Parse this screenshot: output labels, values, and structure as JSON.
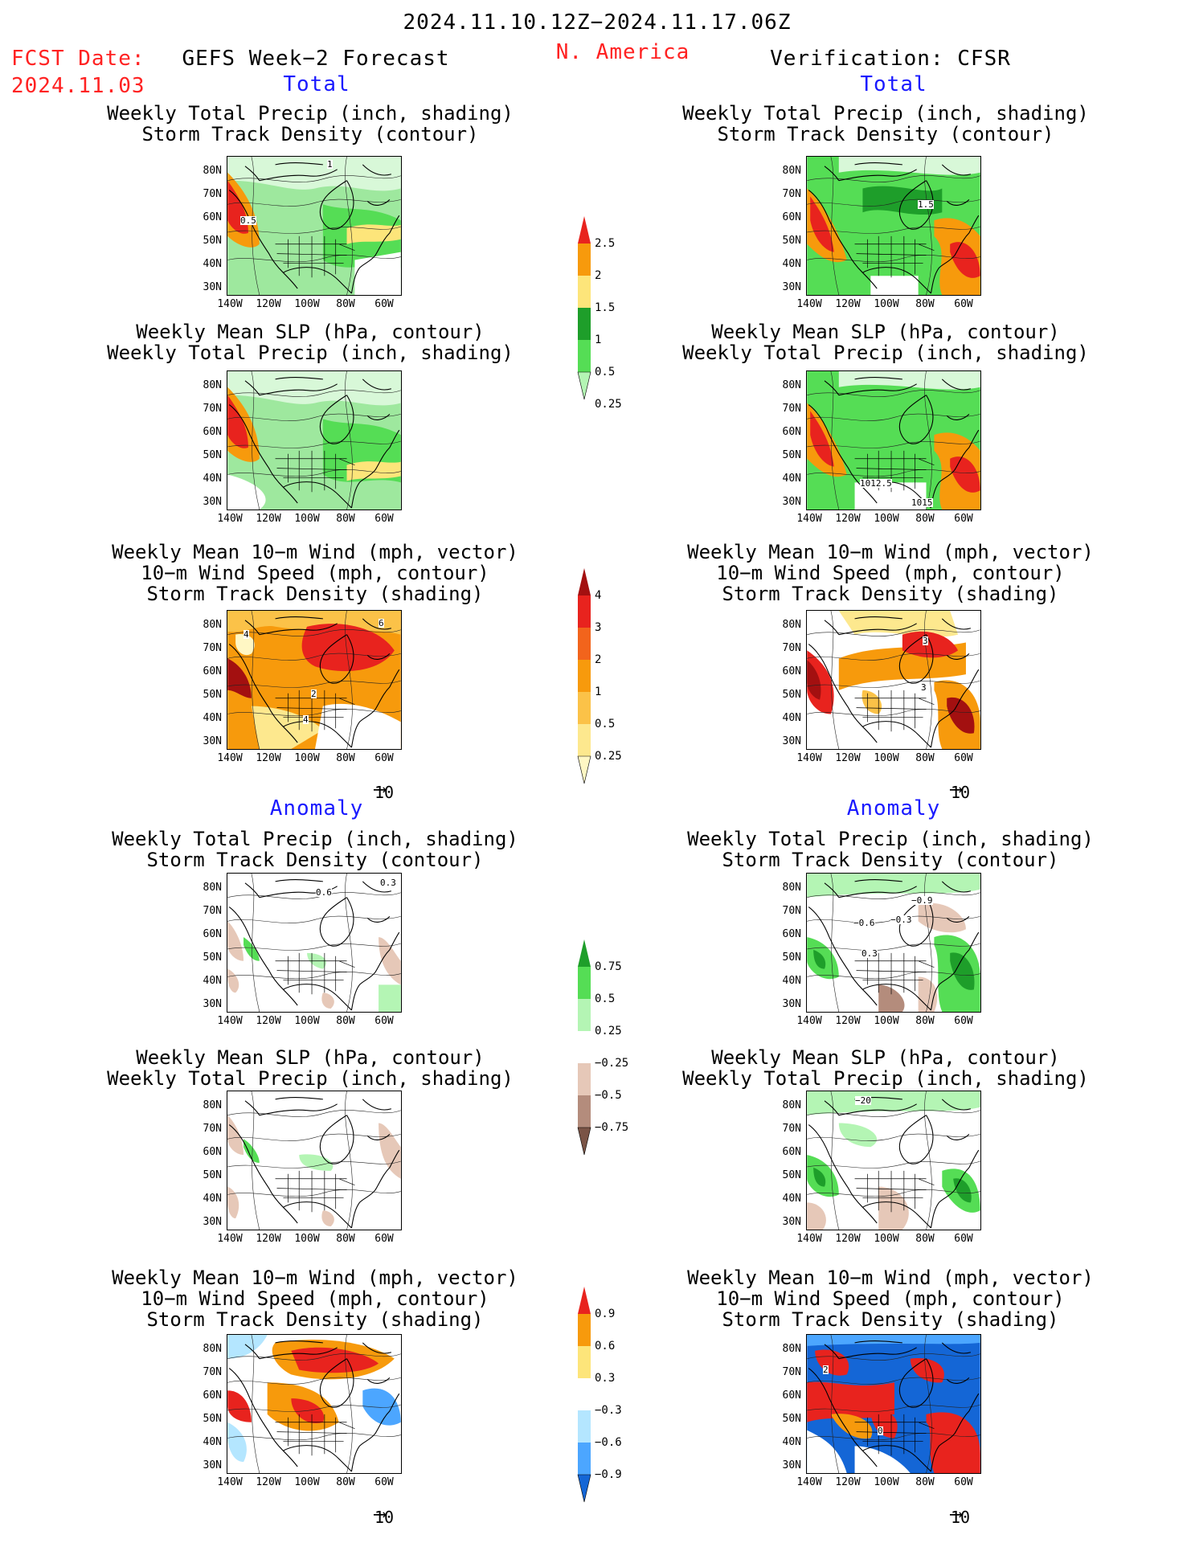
{
  "header": {
    "period": "2024.11.10.12Z−2024.11.17.06Z",
    "fcst_label": "FCST Date:",
    "fcst_date": "2024.11.03",
    "left_model": "GEFS Week−2 Forecast",
    "region": "N. America",
    "right_model": "Verification: CFSR"
  },
  "sections": {
    "total": "Total",
    "anomaly": "Anomaly"
  },
  "panels": {
    "precip_storm": [
      "Weekly Total Precip (inch, shading)",
      "Storm Track Density (contour)"
    ],
    "slp_precip": [
      "Weekly Mean SLP (hPa, contour)",
      "Weekly Total Precip (inch, shading)"
    ],
    "wind_storm": [
      "Weekly Mean 10−m Wind (mph, vector)",
      "10−m Wind Speed (mph, contour)",
      "Storm Track Density (shading)"
    ]
  },
  "axes": {
    "lat": [
      "80N",
      "70N",
      "60N",
      "50N",
      "40N",
      "30N"
    ],
    "lon": [
      "140W",
      "120W",
      "100W",
      "80W",
      "60W"
    ]
  },
  "vector_ref": "10",
  "colorbars": {
    "precip_total": {
      "labels": [
        "2.5",
        "2",
        "1.5",
        "1",
        "0.5",
        "0.25"
      ],
      "colors": [
        "#e8231e",
        "#f79a0c",
        "#fde57a",
        "#1e9e2a",
        "#55dd55",
        "#b4f5b4"
      ]
    },
    "storm_total": {
      "labels": [
        "4",
        "3",
        "2",
        "1",
        "0.5",
        "0.25"
      ],
      "colors": [
        "#a31010",
        "#e8231e",
        "#f2641c",
        "#f79a0c",
        "#fbc248",
        "#fde88e",
        "#fff7c4"
      ]
    },
    "precip_anom": {
      "labels": [
        "0.75",
        "0.5",
        "0.25",
        "−0.25",
        "−0.5",
        "−0.75"
      ],
      "colors": [
        "#1e9e2a",
        "#55dd55",
        "#b4f5b4",
        "#ffffff",
        "#e6c8b8",
        "#b48c7c",
        "#7a5446"
      ]
    },
    "storm_anom": {
      "labels": [
        "0.9",
        "0.6",
        "0.3",
        "−0.3",
        "−0.6",
        "−0.9"
      ],
      "colors": [
        "#e8231e",
        "#f79a0c",
        "#fde57a",
        "#ffffff",
        "#b4e6ff",
        "#4ca6ff",
        "#1466d6"
      ]
    }
  },
  "map_labels": {
    "l1": "1",
    "l1b": "0.5",
    "r1": "1.5",
    "r2a": "1012.5",
    "r2b": "1015",
    "l3a": "4",
    "l3b": "2",
    "l3c": "4",
    "l3d": "6",
    "r3a": "3",
    "r3b": "3",
    "l4": "0.6",
    "l4b": "0.3",
    "r4a": "−0.9",
    "r4b": "−0.6",
    "r4c": "−0.3",
    "r4d": "0.3",
    "r5": "−20",
    "r6a": "2",
    "r6b": "0"
  }
}
